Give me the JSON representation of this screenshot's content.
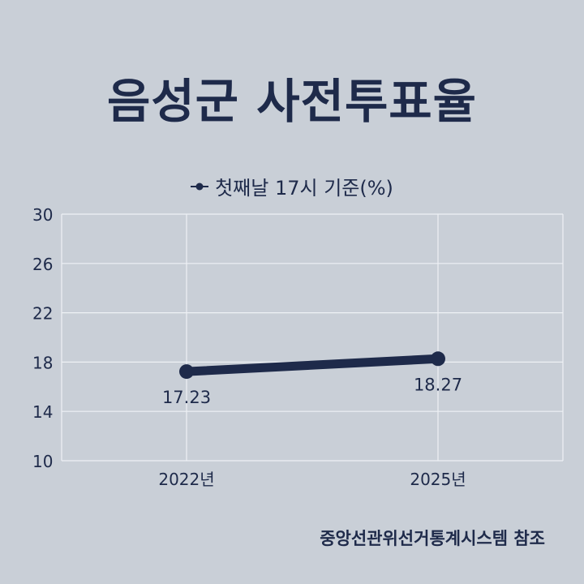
{
  "chart_data": {
    "type": "line",
    "title": "음성군 사전투표율",
    "categories": [
      "2022년",
      "2025년"
    ],
    "series": [
      {
        "name": "첫째날 17시 기준(%)",
        "values": [
          17.23,
          18.27
        ],
        "data_labels": [
          "17.23",
          "18.27"
        ]
      }
    ],
    "ylim": [
      10,
      30
    ],
    "yticks": [
      "10",
      "14",
      "18",
      "22",
      "26",
      "30"
    ],
    "xlabel": "",
    "ylabel": "",
    "grid": true,
    "legend_position": "top",
    "colors": {
      "line": "#1e2a4a",
      "background": "#c9cfd7",
      "grid": "#eef1f5"
    }
  },
  "footer": {
    "source": "중앙선관위선거통계시스템 참조"
  }
}
